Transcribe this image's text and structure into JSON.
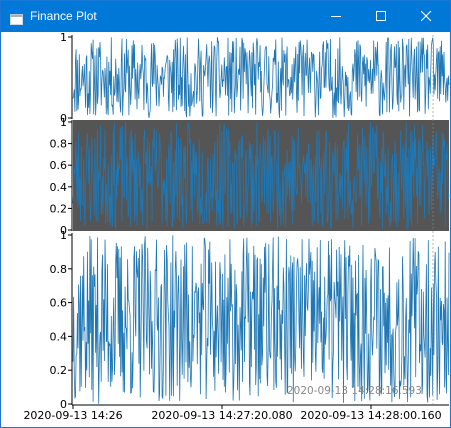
{
  "window": {
    "title": "Finance Plot",
    "app_icon": "app-window-icon",
    "controls": {
      "minimize_icon": "minimize-icon",
      "maximize_icon": "maximize-icon",
      "close_icon": "close-icon"
    }
  },
  "colors": {
    "series": "#1f77b4",
    "middle_background": "#555555",
    "plot_background": "#ffffff",
    "titlebar": "#0078d7"
  },
  "crosshair_label": "2020-09-13 14:28:16.593",
  "chart_data": [
    {
      "type": "line",
      "panel": "top",
      "ylim": [
        0,
        1
      ],
      "yticks": [
        "1",
        "0"
      ],
      "grid": false,
      "samples": 600,
      "seed": 11
    },
    {
      "type": "line",
      "panel": "middle",
      "background": "#555555",
      "ylim": [
        0,
        1
      ],
      "yticks": [
        "1",
        "0.8",
        "0.6",
        "0.4",
        "0.2",
        "0"
      ],
      "grid": false,
      "samples": 600,
      "seed": 23
    },
    {
      "type": "line",
      "panel": "bottom",
      "ylim": [
        0,
        1
      ],
      "yticks": [
        "1",
        "0.8",
        "0.6",
        "0.4",
        "0.2",
        "0"
      ],
      "xticks": [
        "2020-09-13 14:26",
        "2020-09-13 14:27:20.080",
        "2020-09-13 14:28:00.160"
      ],
      "grid": false,
      "samples": 600,
      "seed": 37
    }
  ]
}
